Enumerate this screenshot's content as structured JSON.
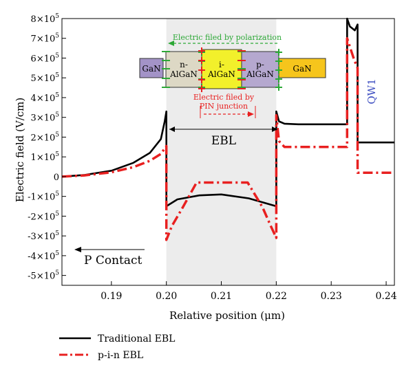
{
  "chart_data": {
    "type": "line",
    "xlabel": "Relative position (μm)",
    "ylabel": "Electric field (V/cm)",
    "xlim": [
      0.181,
      0.2415
    ],
    "ylim": [
      -550000,
      800000
    ],
    "x_ticks": [
      0.19,
      0.2,
      0.21,
      0.22,
      0.23,
      0.24
    ],
    "x_tick_labels": [
      "0.19",
      "0.20",
      "0.21",
      "0.22",
      "0.23",
      "0.24"
    ],
    "y_ticks": [
      800000,
      700000,
      600000,
      500000,
      400000,
      300000,
      200000,
      100000,
      0,
      -100000,
      -200000,
      -300000,
      -400000,
      -500000
    ],
    "y_tick_labels": [
      {
        "mant": "8×10",
        "exp": "5"
      },
      {
        "mant": "7×10",
        "exp": "5"
      },
      {
        "mant": "6×10",
        "exp": "5"
      },
      {
        "mant": "5×10",
        "exp": "5"
      },
      {
        "mant": "4×10",
        "exp": "5"
      },
      {
        "mant": "3×10",
        "exp": "5"
      },
      {
        "mant": "2×10",
        "exp": "5"
      },
      {
        "mant": "1×10",
        "exp": "5"
      },
      {
        "mant": "0",
        "exp": ""
      },
      {
        "mant": "-1×10",
        "exp": "5"
      },
      {
        "mant": "-2×10",
        "exp": "5"
      },
      {
        "mant": "-3×10",
        "exp": "5"
      },
      {
        "mant": "-4×10",
        "exp": "5"
      },
      {
        "mant": "-5×10",
        "exp": "5"
      }
    ],
    "shaded_region": {
      "x": [
        0.2,
        0.22
      ]
    },
    "grid": false,
    "series": [
      {
        "name": "Traditional EBL",
        "color": "#000000",
        "style": "solid",
        "points": [
          [
            0.181,
            0
          ],
          [
            0.185,
            8000
          ],
          [
            0.19,
            30000
          ],
          [
            0.194,
            70000
          ],
          [
            0.197,
            120000
          ],
          [
            0.199,
            190000
          ],
          [
            0.1997,
            280000
          ],
          [
            0.2,
            330000
          ],
          [
            0.2,
            -150000
          ],
          [
            0.202,
            -115000
          ],
          [
            0.206,
            -95000
          ],
          [
            0.21,
            -90000
          ],
          [
            0.215,
            -110000
          ],
          [
            0.22,
            -150000
          ],
          [
            0.22,
            330000
          ],
          [
            0.2205,
            280000
          ],
          [
            0.2215,
            268000
          ],
          [
            0.224,
            265000
          ],
          [
            0.229,
            265000
          ],
          [
            0.2329,
            265000
          ],
          [
            0.2329,
            800000
          ],
          [
            0.2334,
            760000
          ],
          [
            0.2343,
            740000
          ],
          [
            0.2348,
            770000
          ],
          [
            0.2348,
            173000
          ],
          [
            0.2415,
            173000
          ]
        ]
      },
      {
        "name": "p-i-n EBL",
        "color": "#e82020",
        "style": "dashdot",
        "points": [
          [
            0.181,
            0
          ],
          [
            0.185,
            6000
          ],
          [
            0.19,
            22000
          ],
          [
            0.194,
            48000
          ],
          [
            0.197,
            80000
          ],
          [
            0.199,
            115000
          ],
          [
            0.2,
            155000
          ],
          [
            0.2,
            -320000
          ],
          [
            0.201,
            -250000
          ],
          [
            0.203,
            -155000
          ],
          [
            0.2055,
            -30000
          ],
          [
            0.2055,
            -30000
          ],
          [
            0.2148,
            -30000
          ],
          [
            0.2175,
            -155000
          ],
          [
            0.219,
            -250000
          ],
          [
            0.22,
            -310000
          ],
          [
            0.22,
            310000
          ],
          [
            0.2205,
            180000
          ],
          [
            0.2215,
            150000
          ],
          [
            0.224,
            150000
          ],
          [
            0.2321,
            150000
          ],
          [
            0.2321,
            150000
          ],
          [
            0.2329,
            150000
          ],
          [
            0.2329,
            700000
          ],
          [
            0.2336,
            640000
          ],
          [
            0.2342,
            590000
          ],
          [
            0.2348,
            550000
          ],
          [
            0.2348,
            20000
          ],
          [
            0.2415,
            20000
          ]
        ]
      }
    ],
    "annotations": {
      "ebl_label": "EBL",
      "qw_label": "QW1",
      "p_contact_label": "P Contact",
      "polarization_label": "Electric filed by polarization",
      "pin_label_line1": "Electric filed by",
      "pin_label_line2": "PIN junction",
      "layers": [
        {
          "line1": "GaN",
          "line2": "",
          "color": "#a393c7"
        },
        {
          "line1": "n-",
          "line2": "AlGaN",
          "color": "#ddd8c5"
        },
        {
          "line1": "i-",
          "line2": "AlGaN",
          "color": "#f2f02b"
        },
        {
          "line1": "p-",
          "line2": "AlGaN",
          "color": "#b5a8cf"
        },
        {
          "line1": "GaN",
          "line2": "",
          "color": "#f6c51c"
        }
      ]
    },
    "legend": {
      "placement": "below-left",
      "items": [
        {
          "label": "Traditional EBL",
          "color": "#000000",
          "style": "solid"
        },
        {
          "label": "p-i-n EBL",
          "color": "#e82020",
          "style": "dashdot"
        }
      ]
    },
    "colors": {
      "shade": "#ececec",
      "green": "#2ca836",
      "red": "#e82020",
      "qw": "#3b4cc0"
    }
  }
}
